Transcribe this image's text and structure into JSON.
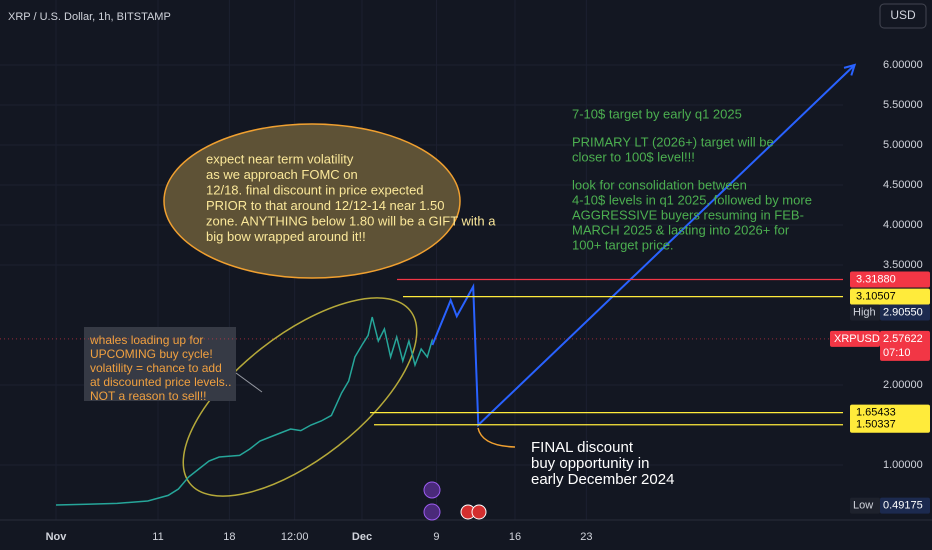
{
  "chart_data": {
    "type": "line",
    "title": "XRP / U.S. Dollar, 1h, BITSTAMP",
    "currency": "USD",
    "color": "#26a69a",
    "x": [
      0,
      3,
      6,
      9,
      11,
      12,
      13,
      14,
      15,
      16,
      18,
      19,
      20,
      21,
      22,
      23,
      24,
      25,
      26,
      27,
      28,
      28.7,
      29.3,
      30,
      30.6,
      31,
      31.6,
      32.2,
      32.8,
      33.4,
      34,
      34.6,
      35.2,
      35.8,
      36.4,
      36.9
    ],
    "values": [
      0.5,
      0.51,
      0.52,
      0.55,
      0.62,
      0.7,
      0.85,
      0.95,
      1.05,
      1.1,
      1.12,
      1.2,
      1.3,
      1.35,
      1.4,
      1.45,
      1.43,
      1.5,
      1.55,
      1.62,
      1.9,
      2.05,
      2.35,
      2.5,
      2.62,
      2.85,
      2.55,
      2.7,
      2.35,
      2.6,
      2.3,
      2.55,
      2.25,
      2.45,
      2.35,
      2.57
    ],
    "projection": {
      "color": "#2962ff",
      "x": [
        36.9,
        38.7,
        39.3,
        40.9,
        41.4,
        78.3
      ],
      "values": [
        2.5,
        3.06,
        2.86,
        3.23,
        1.5,
        6.0
      ]
    },
    "xlim": [
      -5.49,
      80.59
    ],
    "ylim": [
      0.3125,
      6.8125
    ],
    "xticks": [
      {
        "value": 0,
        "label": "Nov"
      },
      {
        "value": 10,
        "label": "11"
      },
      {
        "value": 17,
        "label": "18"
      },
      {
        "value": 23.4,
        "label": "12:00"
      },
      {
        "value": 30,
        "label": "Dec"
      },
      {
        "value": 37.3,
        "label": "9"
      },
      {
        "value": 45,
        "label": "16"
      },
      {
        "value": 52,
        "label": "23"
      }
    ],
    "yticks": [
      {
        "value": 1,
        "label": "1.00000"
      },
      {
        "value": 2,
        "label": "2.00000"
      },
      {
        "value": 3.5,
        "label": "3.50000"
      },
      {
        "value": 4,
        "label": "4.00000"
      },
      {
        "value": 4.5,
        "label": "4.50000"
      },
      {
        "value": 5,
        "label": "5.00000"
      },
      {
        "value": 5.5,
        "label": "5.50000"
      },
      {
        "value": 6,
        "label": "6.00000"
      }
    ],
    "levels": [
      {
        "value": 3.3188,
        "label": "3.31880",
        "color": "#f23645"
      },
      {
        "value": 3.10507,
        "label": "3.10507",
        "color": "#ffeb3b"
      },
      {
        "value": 1.65433,
        "label": "1.65433",
        "color": "#ffeb3b"
      },
      {
        "value": 1.50337,
        "label": "1.50337",
        "color": "#ffeb3b"
      }
    ],
    "current": {
      "name": "XRPUSD",
      "value": 2.57622,
      "label": "2.57622",
      "countdown": "07:10"
    },
    "high": {
      "name": "High",
      "value": 2.9055,
      "label": "2.90550"
    },
    "low": {
      "name": "Low",
      "value": 0.49175,
      "label": "0.49175"
    },
    "annotations": {
      "fomc": [
        "expect near term volatility",
        "as we approach FOMC on",
        "12/18. final discount in price expected",
        "PRIOR to that around 12/12-14 near 1.50",
        "zone. ANYTHING below 1.80 will be a GIFT with a",
        "big bow wrapped around it!!"
      ],
      "whales": [
        "whales loading up for",
        "UPCOMING buy cycle!",
        "volatility = chance to add",
        "at discounted price levels..",
        "NOT a reason to sell!!"
      ],
      "targets": [
        [
          "7-10$ target by early q1 2025"
        ],
        [
          "PRIMARY LT (2026+) target will be",
          "closer to 100$ level!!!"
        ],
        [
          "look for consolidation between",
          "4-10$ levels in q1 2025, followed by more",
          "AGGRESSIVE buyers resuming in FEB-",
          "MARCH 2025 & lasting into 2026+ for",
          "100+ target price."
        ]
      ],
      "final": [
        "FINAL discount",
        "buy opportunity in",
        "early December 2024"
      ]
    }
  }
}
